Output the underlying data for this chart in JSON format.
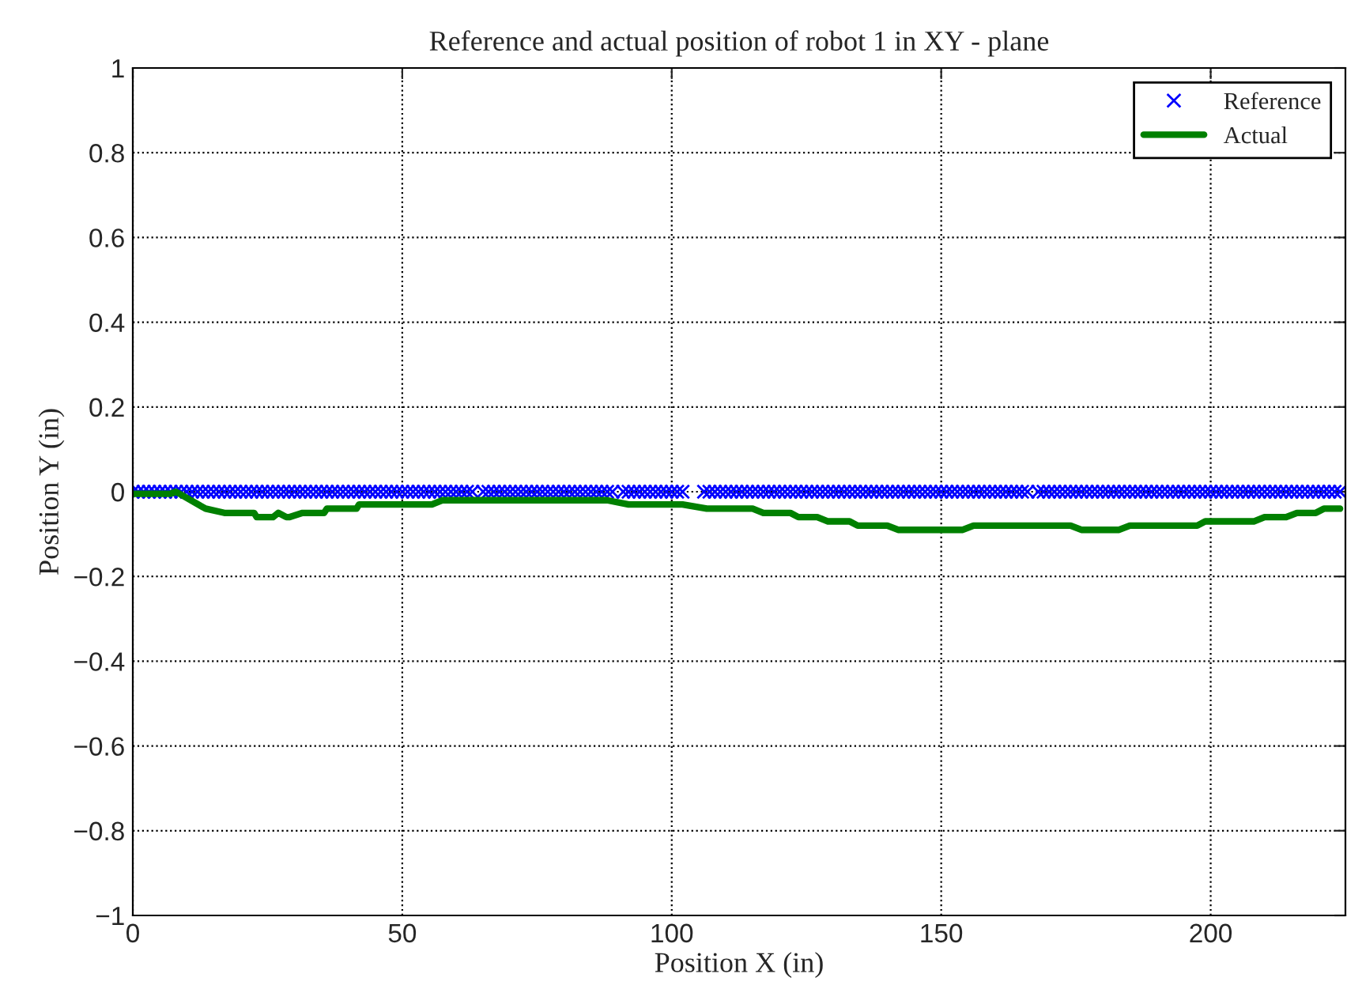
{
  "chart_data": {
    "type": "line",
    "title": "Reference and actual position of robot 1 in XY - plane",
    "xlabel": "Position X (in)",
    "ylabel": "Position Y (in)",
    "xlim": [
      0,
      225
    ],
    "ylim": [
      -1,
      1
    ],
    "xticks": [
      0,
      50,
      100,
      150,
      200
    ],
    "yticks": [
      -1,
      -0.8,
      -0.6,
      -0.4,
      -0.2,
      0,
      0.2,
      0.4,
      0.6,
      0.8,
      1
    ],
    "grid": true,
    "legend": "top right",
    "series": [
      {
        "name": "Reference",
        "type": "scatter",
        "marker": "cross",
        "color": "#0000ff",
        "x": [
          0,
          1,
          2,
          3,
          4,
          5,
          6,
          7,
          8,
          9,
          10,
          11,
          12,
          13,
          14,
          15,
          16,
          17,
          18,
          19,
          20,
          21,
          22,
          23,
          24,
          25,
          26,
          27,
          28,
          29,
          30,
          31,
          32,
          33,
          34,
          35,
          36,
          37,
          38,
          39,
          40,
          41,
          42,
          43,
          44,
          45,
          46,
          47,
          48,
          49,
          50,
          51,
          52,
          53,
          54,
          55,
          56,
          57,
          58,
          59,
          60,
          61,
          62,
          63,
          65,
          66,
          67,
          68,
          69,
          70,
          71,
          72,
          73,
          74,
          75,
          76,
          77,
          78,
          79,
          80,
          81,
          82,
          83,
          84,
          85,
          86,
          87,
          88,
          89,
          91,
          92,
          93,
          94,
          95,
          96,
          97,
          98,
          99,
          100,
          101,
          102,
          106,
          107,
          108,
          109,
          110,
          111,
          112,
          113,
          114,
          115,
          116,
          117,
          118,
          119,
          120,
          121,
          122,
          123,
          124,
          125,
          126,
          127,
          128,
          129,
          130,
          131,
          132,
          133,
          134,
          135,
          136,
          137,
          138,
          139,
          140,
          141,
          142,
          143,
          144,
          145,
          146,
          147,
          148,
          149,
          150,
          151,
          152,
          153,
          154,
          155,
          156,
          157,
          158,
          159,
          160,
          161,
          162,
          163,
          164,
          165,
          166,
          168,
          169,
          170,
          171,
          172,
          173,
          174,
          175,
          176,
          177,
          178,
          179,
          180,
          181,
          182,
          183,
          184,
          185,
          186,
          187,
          188,
          189,
          190,
          191,
          192,
          193,
          194,
          195,
          196,
          197,
          198,
          199,
          200,
          201,
          202,
          203,
          204,
          205,
          206,
          207,
          208,
          209,
          210,
          211,
          212,
          213,
          214,
          215,
          216,
          217,
          218,
          219,
          220,
          221,
          222,
          223,
          224
        ],
        "values": [
          0,
          0,
          0,
          0,
          0,
          0,
          0,
          0,
          0,
          0,
          0,
          0,
          0,
          0,
          0,
          0,
          0,
          0,
          0,
          0,
          0,
          0,
          0,
          0,
          0,
          0,
          0,
          0,
          0,
          0,
          0,
          0,
          0,
          0,
          0,
          0,
          0,
          0,
          0,
          0,
          0,
          0,
          0,
          0,
          0,
          0,
          0,
          0,
          0,
          0,
          0,
          0,
          0,
          0,
          0,
          0,
          0,
          0,
          0,
          0,
          0,
          0,
          0,
          0,
          0,
          0,
          0,
          0,
          0,
          0,
          0,
          0,
          0,
          0,
          0,
          0,
          0,
          0,
          0,
          0,
          0,
          0,
          0,
          0,
          0,
          0,
          0,
          0,
          0,
          0,
          0,
          0,
          0,
          0,
          0,
          0,
          0,
          0,
          0,
          0,
          0,
          0,
          0,
          0,
          0,
          0,
          0,
          0,
          0,
          0,
          0,
          0,
          0,
          0,
          0,
          0,
          0,
          0,
          0,
          0,
          0,
          0,
          0,
          0,
          0,
          0,
          0,
          0,
          0,
          0,
          0,
          0,
          0,
          0,
          0,
          0,
          0,
          0,
          0,
          0,
          0,
          0,
          0,
          0,
          0,
          0,
          0,
          0,
          0,
          0,
          0,
          0,
          0,
          0,
          0,
          0,
          0,
          0,
          0,
          0,
          0,
          0,
          0,
          0,
          0,
          0,
          0,
          0,
          0,
          0,
          0,
          0,
          0,
          0,
          0,
          0,
          0,
          0,
          0,
          0,
          0,
          0,
          0,
          0,
          0,
          0,
          0,
          0,
          0,
          0,
          0,
          0,
          0,
          0,
          0,
          0,
          0,
          0,
          0,
          0,
          0,
          0,
          0,
          0,
          0,
          0,
          0,
          0,
          0,
          0,
          0,
          0,
          0,
          0,
          0,
          0,
          0,
          0,
          0
        ]
      },
      {
        "name": "Actual",
        "marker": "none",
        "line_style": "solid",
        "color": "#008000",
        "x": [
          0,
          7,
          8,
          13.5,
          17,
          22.5,
          23,
          26,
          27,
          28.5,
          29,
          31.5,
          32,
          35.5,
          36,
          41.5,
          42,
          55.5,
          57.5,
          88,
          92,
          102,
          106.5,
          115,
          117,
          122,
          123.5,
          127,
          129,
          133,
          134.5,
          140,
          142,
          154,
          156,
          174,
          176,
          183,
          185,
          197.5,
          199,
          208,
          210,
          214,
          216,
          219.5,
          221,
          224
        ],
        "values": [
          -0.005,
          -0.005,
          0,
          -0.04,
          -0.05,
          -0.05,
          -0.06,
          -0.06,
          -0.05,
          -0.06,
          -0.06,
          -0.05,
          -0.05,
          -0.05,
          -0.04,
          -0.04,
          -0.03,
          -0.03,
          -0.02,
          -0.02,
          -0.03,
          -0.03,
          -0.04,
          -0.04,
          -0.05,
          -0.05,
          -0.06,
          -0.06,
          -0.07,
          -0.07,
          -0.08,
          -0.08,
          -0.09,
          -0.09,
          -0.08,
          -0.08,
          -0.09,
          -0.09,
          -0.08,
          -0.08,
          -0.07,
          -0.07,
          -0.06,
          -0.06,
          -0.05,
          -0.05,
          -0.04,
          -0.04
        ]
      }
    ]
  }
}
